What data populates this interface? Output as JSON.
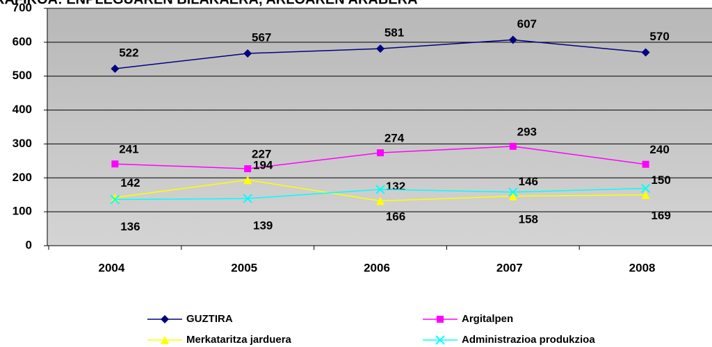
{
  "chart_data": {
    "type": "line",
    "title": "RAFIKOA: ENPLEGUAREN BILAKAERA, ARLOAREN ARABERA",
    "categories": [
      "2004",
      "2005",
      "2006",
      "2007",
      "2008"
    ],
    "series": [
      {
        "name": "GUZTIRA",
        "color": "#000080",
        "marker": "diamond",
        "values": [
          522,
          567,
          581,
          607,
          570
        ]
      },
      {
        "name": "Argitalpen",
        "color": "#ff00ff",
        "marker": "square",
        "values": [
          241,
          227,
          274,
          293,
          240
        ]
      },
      {
        "name": "Merkataritza jarduera",
        "color": "#ffff00",
        "marker": "triangle",
        "values": [
          142,
          194,
          132,
          146,
          150
        ]
      },
      {
        "name": "Administrazioa produkzioa",
        "color": "#00ffff",
        "marker": "x",
        "values": [
          136,
          139,
          166,
          158,
          169
        ]
      }
    ],
    "ylim": [
      0,
      700
    ],
    "yticks": [
      0,
      100,
      200,
      300,
      400,
      500,
      600,
      700
    ],
    "grid": true,
    "legend": "bottom"
  }
}
